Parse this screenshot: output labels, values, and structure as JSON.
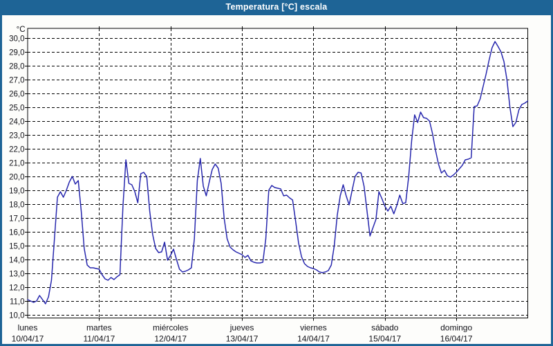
{
  "window": {
    "title": "Temperatura [°C] escala"
  },
  "colors": {
    "titlebar": "#1e6496",
    "window_border": "#1e6496",
    "title_text": "#ffffff",
    "line": "#2626ad",
    "grid": "#000000",
    "axis_text": "#121218",
    "background": "#fdfdfb",
    "plot_background": "#ffffff"
  },
  "chart_data": {
    "type": "line",
    "title": "Temperatura [°C] escala",
    "ylabel": "°C",
    "xlabel": "",
    "ylim": [
      10,
      30
    ],
    "y_step": 1,
    "grid": "dashed",
    "legend": "none",
    "y_axis": {
      "unit_label": "°C",
      "tick_values": [
        30,
        29,
        28,
        27,
        26,
        25,
        24,
        23,
        22,
        21,
        20,
        19,
        18,
        17,
        16,
        15,
        14,
        13,
        12,
        11,
        10
      ],
      "tick_labels": [
        "30,0",
        "29,0",
        "28,0",
        "27,0",
        "26,0",
        "25,0",
        "24,0",
        "23,0",
        "22,0",
        "21,0",
        "20,0",
        "19,0",
        "18,0",
        "17,0",
        "16,0",
        "15,0",
        "14,0",
        "13,0",
        "12,0",
        "11,0",
        "10,0"
      ]
    },
    "x_axis": {
      "sampling": "hourly",
      "hours_per_day": 24,
      "days": [
        {
          "name": "lunes",
          "date": "10/04/17"
        },
        {
          "name": "martes",
          "date": "11/04/17"
        },
        {
          "name": "miércoles",
          "date": "12/04/17"
        },
        {
          "name": "jueves",
          "date": "13/04/17"
        },
        {
          "name": "viernes",
          "date": "14/04/17"
        },
        {
          "name": "sábado",
          "date": "15/04/17"
        },
        {
          "name": "domingo",
          "date": "16/04/17"
        }
      ]
    },
    "series": [
      {
        "name": "Temperatura [°C]",
        "color": "#2626ad",
        "values": [
          11.1,
          11.0,
          10.9,
          11.0,
          11.4,
          11.1,
          10.8,
          11.3,
          12.5,
          15.5,
          18.5,
          18.9,
          18.5,
          19.0,
          19.6,
          20.0,
          19.45,
          19.7,
          17.5,
          14.8,
          13.6,
          13.4,
          13.4,
          13.35,
          13.3,
          12.9,
          12.6,
          12.5,
          12.7,
          12.55,
          12.75,
          12.9,
          17.8,
          21.2,
          19.5,
          19.4,
          18.9,
          18.1,
          20.2,
          20.3,
          20.0,
          17.5,
          15.8,
          14.8,
          14.5,
          14.55,
          15.25,
          13.95,
          14.3,
          14.75,
          14.0,
          13.3,
          13.1,
          13.15,
          13.25,
          13.4,
          15.5,
          19.7,
          21.3,
          19.3,
          18.6,
          19.6,
          20.5,
          20.9,
          20.6,
          19.5,
          17.0,
          15.5,
          14.9,
          14.7,
          14.55,
          14.45,
          14.35,
          14.15,
          14.3,
          13.9,
          13.8,
          13.75,
          13.75,
          13.8,
          15.5,
          19.0,
          19.35,
          19.2,
          19.15,
          19.1,
          18.6,
          18.65,
          18.45,
          18.3,
          16.8,
          15.2,
          14.2,
          13.7,
          13.5,
          13.4,
          13.35,
          13.25,
          13.1,
          13.05,
          13.1,
          13.2,
          13.6,
          15.0,
          17.2,
          18.6,
          19.4,
          18.6,
          17.95,
          19.0,
          20.0,
          20.3,
          20.25,
          19.3,
          17.5,
          15.7,
          16.3,
          16.9,
          18.9,
          18.4,
          17.85,
          17.5,
          17.85,
          17.3,
          17.9,
          18.65,
          18.05,
          18.1,
          20.0,
          22.6,
          24.45,
          23.9,
          24.65,
          24.25,
          24.2,
          24.0,
          23.1,
          21.9,
          20.9,
          20.25,
          20.45,
          20.05,
          19.95,
          20.1,
          20.3,
          20.55,
          20.8,
          21.2,
          21.25,
          21.35,
          25.05,
          25.1,
          25.6,
          26.5,
          27.4,
          28.4,
          29.3,
          29.75,
          29.4,
          29.0,
          28.3,
          27.0,
          25.0,
          23.6,
          23.9,
          24.8,
          25.2,
          25.3,
          25.45
        ]
      }
    ]
  }
}
